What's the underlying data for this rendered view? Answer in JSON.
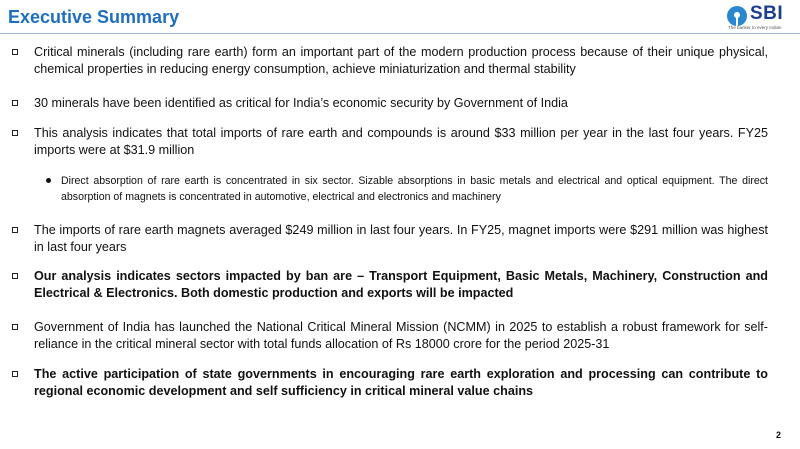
{
  "header": {
    "title": "Executive Summary",
    "logo": {
      "name": "SBI",
      "tagline": "The banker to every Indian"
    }
  },
  "bullets": [
    {
      "text": "Critical minerals (including rare earth) form an important part of the modern production process because of their unique physical, chemical properties in reducing energy consumption, achieve miniaturization and thermal stability"
    },
    {
      "text": "30 minerals have been identified as critical for India’s economic security by Government of India"
    },
    {
      "text": "This analysis indicates that total imports of rare earth and compounds is around $33 million per year in the last four years. FY25 imports were at $31.9 million",
      "sub_bullets": [
        "Direct absorption of rare earth is concentrated in six sector. Sizable absorptions in basic metals and electrical and optical equipment. The direct absorption of magnets is concentrated in automotive, electrical and electronics and machinery"
      ]
    },
    {
      "text": "The imports of rare earth magnets averaged $249 million in last four years. In FY25, magnet imports were $291 million was highest in last four years"
    },
    {
      "text": "Our analysis indicates sectors impacted by ban are – Transport Equipment, Basic Metals, Machinery, Construction and Electrical & Electronics. Both domestic production and exports will be impacted",
      "bold": true
    },
    {
      "text": "Government of India has launched the National Critical Mineral Mission (NCMM) in 2025 to establish a robust framework for self-reliance in the critical mineral sector with total funds allocation of Rs 18000 crore for the period 2025-31"
    },
    {
      "text": "The active participation of state governments in encouraging rare earth exploration and processing can contribute to regional economic development and self sufficiency in critical mineral value chains",
      "bold": true
    }
  ],
  "page_number": "2"
}
